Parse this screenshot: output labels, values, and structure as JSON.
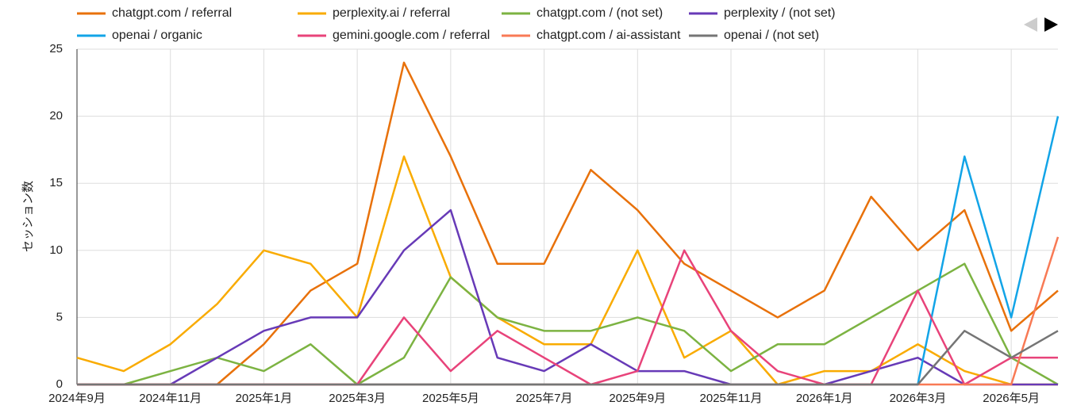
{
  "chart_data": {
    "type": "line",
    "y_label": "セッション数",
    "categories": [
      "2024年9月",
      null,
      "2024年11月",
      null,
      "2025年1月",
      null,
      "2025年3月",
      null,
      "2025年5月",
      null,
      "2025年7月",
      null,
      "2025年9月",
      null,
      "2025年11月",
      null,
      "2026年1月",
      null,
      "2026年3月",
      null,
      "2026年5月",
      null
    ],
    "ylim": [
      0,
      25
    ],
    "yticks": [
      0,
      5,
      10,
      15,
      20,
      25
    ],
    "grid": true,
    "series": [
      {
        "name": "chatgpt.com / referral",
        "color": "#e8710a",
        "values": [
          0,
          0,
          0,
          0,
          3,
          7,
          9,
          24,
          17,
          9,
          9,
          16,
          13,
          9,
          7,
          5,
          7,
          14,
          10,
          13,
          4,
          7
        ]
      },
      {
        "name": "perplexity.ai / referral",
        "color": "#f9ab00",
        "values": [
          2,
          1,
          3,
          6,
          10,
          9,
          5,
          17,
          8,
          5,
          3,
          3,
          10,
          2,
          4,
          0,
          1,
          1,
          3,
          1,
          0,
          0
        ]
      },
      {
        "name": "chatgpt.com / (not set)",
        "color": "#7cb342",
        "values": [
          0,
          0,
          1,
          2,
          1,
          3,
          0,
          2,
          8,
          5,
          4,
          4,
          5,
          4,
          1,
          3,
          3,
          5,
          7,
          9,
          2,
          0
        ]
      },
      {
        "name": "perplexity / (not set)",
        "color": "#673ab7",
        "values": [
          0,
          0,
          0,
          2,
          4,
          5,
          5,
          10,
          13,
          2,
          1,
          3,
          1,
          1,
          0,
          0,
          0,
          1,
          2,
          0,
          0,
          0
        ]
      },
      {
        "name": "openai / organic",
        "color": "#12a4e7",
        "values": [
          0,
          0,
          0,
          0,
          0,
          0,
          0,
          0,
          0,
          0,
          0,
          0,
          0,
          0,
          0,
          0,
          0,
          0,
          0,
          17,
          5,
          20
        ]
      },
      {
        "name": "gemini.google.com / referral",
        "color": "#e8437a",
        "values": [
          0,
          0,
          0,
          0,
          0,
          0,
          0,
          5,
          1,
          4,
          2,
          0,
          1,
          10,
          4,
          1,
          0,
          0,
          7,
          0,
          2,
          2
        ]
      },
      {
        "name": "chatgpt.com / ai-assistant",
        "color": "#f87a55",
        "values": [
          0,
          0,
          0,
          0,
          0,
          0,
          0,
          0,
          0,
          0,
          0,
          0,
          0,
          0,
          0,
          0,
          0,
          0,
          0,
          0,
          0,
          11
        ]
      },
      {
        "name": "openai / (not set)",
        "color": "#757575",
        "values": [
          0,
          0,
          0,
          0,
          0,
          0,
          0,
          0,
          0,
          0,
          0,
          0,
          0,
          0,
          0,
          0,
          0,
          0,
          0,
          4,
          2,
          4
        ]
      }
    ]
  }
}
